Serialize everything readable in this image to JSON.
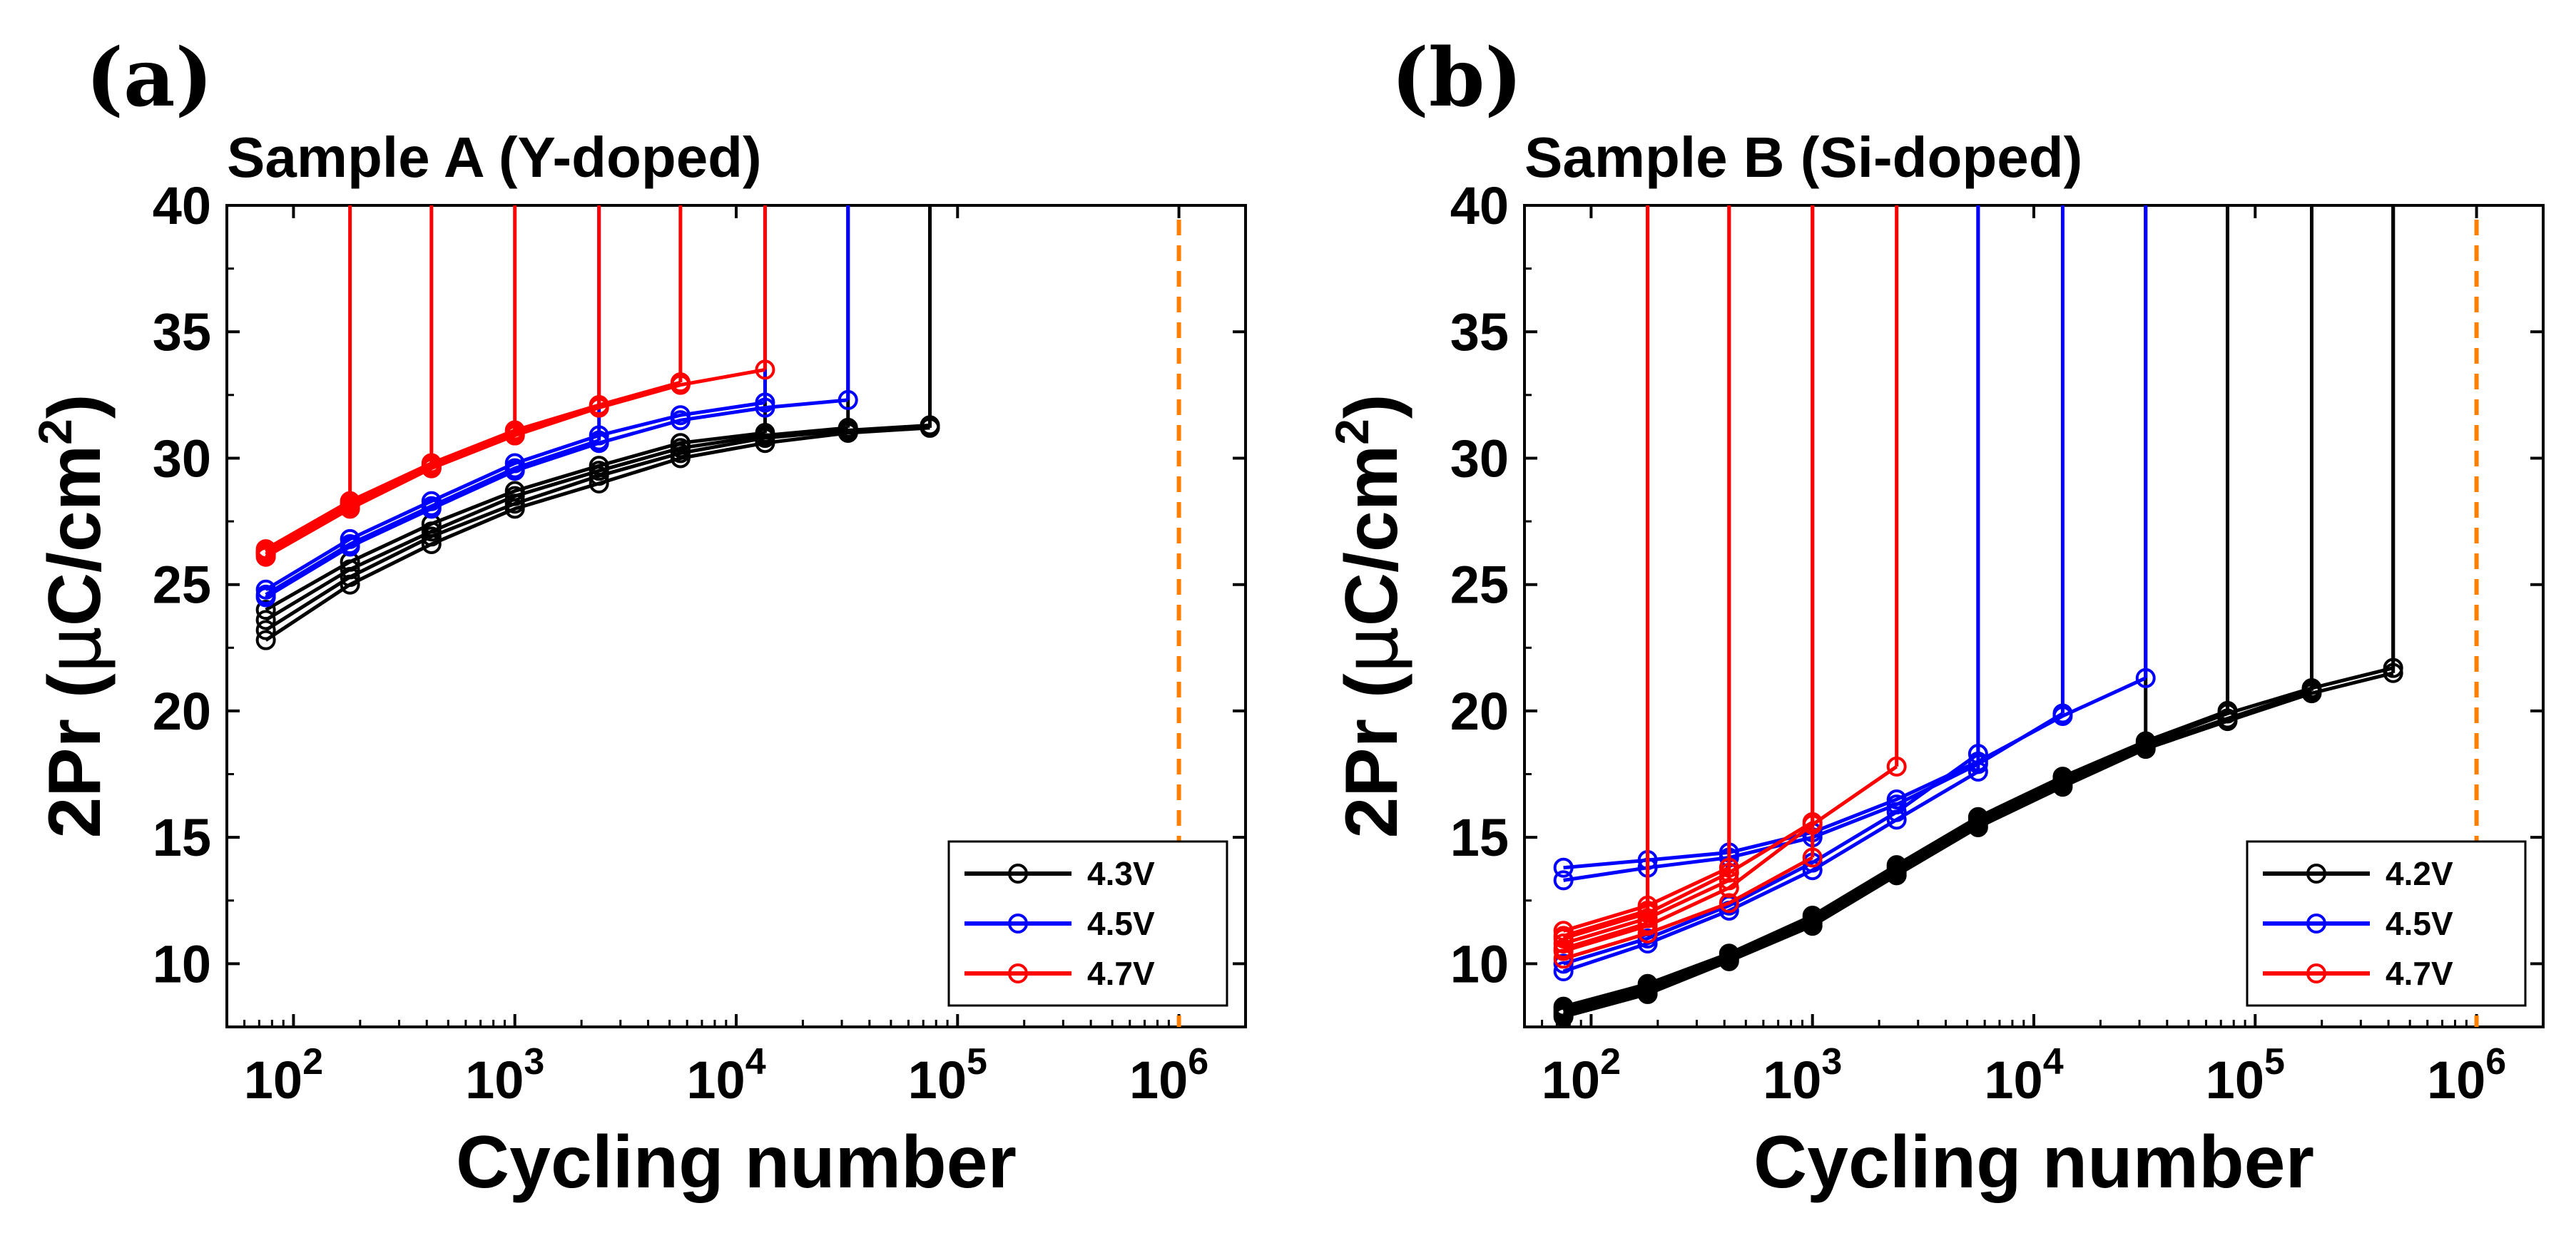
{
  "chart_data": [
    {
      "id": "a",
      "type": "line",
      "panel_label": "(a)",
      "title": "Sample A (Y-doped)",
      "xlabel": "Cycling number",
      "ylabel": "2Pr (μC/cm²)",
      "ylabel_parts": {
        "main": "2Pr (",
        "mu": "μ",
        "unit": "C/cm",
        "sup": "2",
        "close": ")"
      },
      "xscale": "log",
      "xlim": [
        50,
        2000000
      ],
      "ylim": [
        7.5,
        40
      ],
      "yticks": [
        "10",
        "15",
        "20",
        "25",
        "30",
        "35",
        "40"
      ],
      "yticks_values": [
        10,
        15,
        20,
        25,
        30,
        35,
        40
      ],
      "xticks": [
        {
          "base": "10",
          "exp": "2",
          "value": 100
        },
        {
          "base": "10",
          "exp": "3",
          "value": 1000
        },
        {
          "base": "10",
          "exp": "4",
          "value": 10000
        },
        {
          "base": "10",
          "exp": "5",
          "value": 100000
        },
        {
          "base": "10",
          "exp": "6",
          "value": 1000000
        }
      ],
      "reference_line": {
        "x": 1000000,
        "color": "#ff8000",
        "style": "dashed"
      },
      "legend": {
        "position": "bottom-right",
        "entries": [
          "4.3V",
          "4.5V",
          "4.7V"
        ]
      },
      "series": [
        {
          "name": "4.3V",
          "color": "#000000",
          "curves": [
            {
              "x": [
                75,
                180,
                420,
                1000,
                2400,
                5600,
                13500,
                32000,
                75000
              ],
              "y": [
                22.8,
                25.0,
                26.6,
                28.0,
                29.0,
                30.0,
                30.6,
                31.0,
                31.2
              ],
              "breakdown": true
            },
            {
              "x": [
                75,
                180,
                420,
                1000,
                2400,
                5600,
                13500,
                32000,
                75000
              ],
              "y": [
                23.2,
                25.3,
                26.9,
                28.2,
                29.3,
                30.2,
                30.8,
                31.1,
                31.3
              ],
              "breakdown": true
            },
            {
              "x": [
                75,
                180,
                420,
                1000,
                2400,
                5600,
                13500,
                32000
              ],
              "y": [
                23.6,
                25.6,
                27.1,
                28.5,
                29.5,
                30.4,
                30.9,
                31.2
              ],
              "breakdown": true
            },
            {
              "x": [
                75,
                180,
                420,
                1000,
                2400,
                5600,
                13500
              ],
              "y": [
                24.0,
                25.9,
                27.4,
                28.7,
                29.7,
                30.6,
                31.0
              ],
              "breakdown": true
            }
          ]
        },
        {
          "name": "4.5V",
          "color": "#0000ff",
          "curves": [
            {
              "x": [
                75,
                180,
                420,
                1000,
                2400,
                5600,
                13500,
                32000
              ],
              "y": [
                24.5,
                26.5,
                28.0,
                29.5,
                30.6,
                31.5,
                32.0,
                32.3
              ],
              "breakdown": true
            },
            {
              "x": [
                75,
                180,
                420,
                1000,
                2400,
                5600,
                13500
              ],
              "y": [
                24.8,
                26.8,
                28.3,
                29.8,
                30.9,
                31.7,
                32.2
              ],
              "breakdown": true
            },
            {
              "x": [
                75,
                180,
                420,
                1000,
                2400
              ],
              "y": [
                24.6,
                26.6,
                28.1,
                29.6,
                30.7
              ],
              "breakdown": true
            }
          ]
        },
        {
          "name": "4.7V",
          "color": "#ff0000",
          "curves": [
            {
              "x": [
                75,
                180,
                420,
                1000,
                2400,
                5600,
                13500
              ],
              "y": [
                26.2,
                28.1,
                29.6,
                30.9,
                32.0,
                32.9,
                33.5
              ],
              "breakdown": true
            },
            {
              "x": [
                75,
                180,
                420,
                1000,
                2400,
                5600
              ],
              "y": [
                26.4,
                28.3,
                29.8,
                31.1,
                32.1,
                33.0
              ],
              "breakdown": true
            },
            {
              "x": [
                75,
                180,
                420,
                1000,
                2400
              ],
              "y": [
                26.3,
                28.2,
                29.7,
                31.0,
                32.0
              ],
              "breakdown": true
            },
            {
              "x": [
                75,
                180,
                420,
                1000
              ],
              "y": [
                26.1,
                28.0,
                29.6,
                30.9
              ],
              "breakdown": true
            },
            {
              "x": [
                75,
                180,
                420
              ],
              "y": [
                26.3,
                28.2,
                29.7
              ],
              "breakdown": true
            },
            {
              "x": [
                75,
                180
              ],
              "y": [
                26.2,
                28.1
              ],
              "breakdown": true
            }
          ]
        }
      ]
    },
    {
      "id": "b",
      "type": "line",
      "panel_label": "(b)",
      "title": "Sample B (Si-doped)",
      "xlabel": "Cycling number",
      "ylabel": "2Pr (μC/cm²)",
      "ylabel_parts": {
        "main": "2Pr (",
        "mu": "μ",
        "unit": "C/cm",
        "sup": "2",
        "close": ")"
      },
      "xscale": "log",
      "xlim": [
        50,
        2000000
      ],
      "ylim": [
        7.5,
        40
      ],
      "yticks": [
        "10",
        "15",
        "20",
        "25",
        "30",
        "35",
        "40"
      ],
      "yticks_values": [
        10,
        15,
        20,
        25,
        30,
        35,
        40
      ],
      "xticks": [
        {
          "base": "10",
          "exp": "2",
          "value": 100
        },
        {
          "base": "10",
          "exp": "3",
          "value": 1000
        },
        {
          "base": "10",
          "exp": "4",
          "value": 10000
        },
        {
          "base": "10",
          "exp": "5",
          "value": 100000
        },
        {
          "base": "10",
          "exp": "6",
          "value": 1000000
        }
      ],
      "reference_line": {
        "x": 1000000,
        "color": "#ff8000",
        "style": "dashed"
      },
      "legend": {
        "position": "bottom-right",
        "entries": [
          "4.2V",
          "4.5V",
          "4.7V"
        ]
      },
      "series": [
        {
          "name": "4.2V",
          "color": "#000000",
          "curves": [
            {
              "x": [
                75,
                180,
                420,
                1000,
                2400,
                5600,
                13500,
                32000,
                75000,
                180000,
                420000
              ],
              "y": [
                7.9,
                8.8,
                10.1,
                11.5,
                13.5,
                15.4,
                17.0,
                18.5,
                19.6,
                20.7,
                21.5
              ],
              "breakdown": true
            },
            {
              "x": [
                75,
                180,
                420,
                1000,
                2400,
                5600,
                13500,
                32000,
                75000,
                180000,
                420000
              ],
              "y": [
                8.2,
                9.1,
                10.3,
                11.8,
                13.8,
                15.7,
                17.3,
                18.7,
                19.9,
                20.9,
                21.7
              ],
              "breakdown": true
            },
            {
              "x": [
                75,
                180,
                420,
                1000,
                2400,
                5600,
                13500,
                32000,
                75000,
                180000
              ],
              "y": [
                8.0,
                8.9,
                10.2,
                11.6,
                13.6,
                15.5,
                17.1,
                18.6,
                19.7,
                20.8
              ],
              "breakdown": true
            },
            {
              "x": [
                75,
                180,
                420,
                1000,
                2400,
                5600,
                13500,
                32000,
                75000
              ],
              "y": [
                8.3,
                9.2,
                10.4,
                11.9,
                13.9,
                15.8,
                17.4,
                18.8,
                20.0
              ],
              "breakdown": true
            },
            {
              "x": [
                75,
                180,
                420,
                1000,
                2400,
                5600,
                13500,
                32000
              ],
              "y": [
                8.1,
                9.0,
                10.2,
                11.7,
                13.7,
                15.6,
                17.2,
                18.6
              ],
              "breakdown": true
            }
          ]
        },
        {
          "name": "4.5V",
          "color": "#0000ff",
          "curves": [
            {
              "x": [
                75,
                180,
                420,
                1000,
                2400,
                5600,
                13500,
                32000
              ],
              "y": [
                13.8,
                14.1,
                14.4,
                15.2,
                16.5,
                18.0,
                19.8,
                21.3
              ],
              "breakdown": true
            },
            {
              "x": [
                75,
                180,
                420,
                1000,
                2400,
                5600,
                13500
              ],
              "y": [
                13.3,
                13.8,
                14.2,
                15.0,
                16.3,
                17.9,
                19.9
              ],
              "breakdown": true
            },
            {
              "x": [
                75,
                180,
                420,
                1000,
                2400,
                5600
              ],
              "y": [
                10.0,
                11.0,
                12.3,
                14.0,
                16.0,
                18.3
              ],
              "breakdown": true
            },
            {
              "x": [
                75,
                180,
                420,
                1000,
                2400,
                5600
              ],
              "y": [
                9.7,
                10.8,
                12.1,
                13.7,
                15.7,
                17.6
              ],
              "breakdown": true
            }
          ]
        },
        {
          "name": "4.7V",
          "color": "#ff0000",
          "curves": [
            {
              "x": [
                75,
                180,
                420,
                1000,
                2400
              ],
              "y": [
                10.5,
                11.5,
                13.0,
                15.5,
                17.8
              ],
              "breakdown": true
            },
            {
              "x": [
                75,
                180,
                420,
                1000
              ],
              "y": [
                11.0,
                12.0,
                13.6,
                15.6
              ],
              "breakdown": true
            },
            {
              "x": [
                75,
                180,
                420,
                1000
              ],
              "y": [
                10.2,
                11.2,
                12.4,
                14.2
              ],
              "breakdown": true
            },
            {
              "x": [
                75,
                180,
                420
              ],
              "y": [
                11.3,
                12.3,
                13.8
              ],
              "breakdown": true
            },
            {
              "x": [
                75,
                180,
                420
              ],
              "y": [
                10.8,
                11.8,
                13.3
              ],
              "breakdown": true
            },
            {
              "x": [
                75,
                180
              ],
              "y": [
                11.1,
                12.1
              ],
              "breakdown": true
            },
            {
              "x": [
                75,
                180
              ],
              "y": [
                10.6,
                11.6
              ],
              "breakdown": true
            }
          ]
        }
      ]
    }
  ]
}
